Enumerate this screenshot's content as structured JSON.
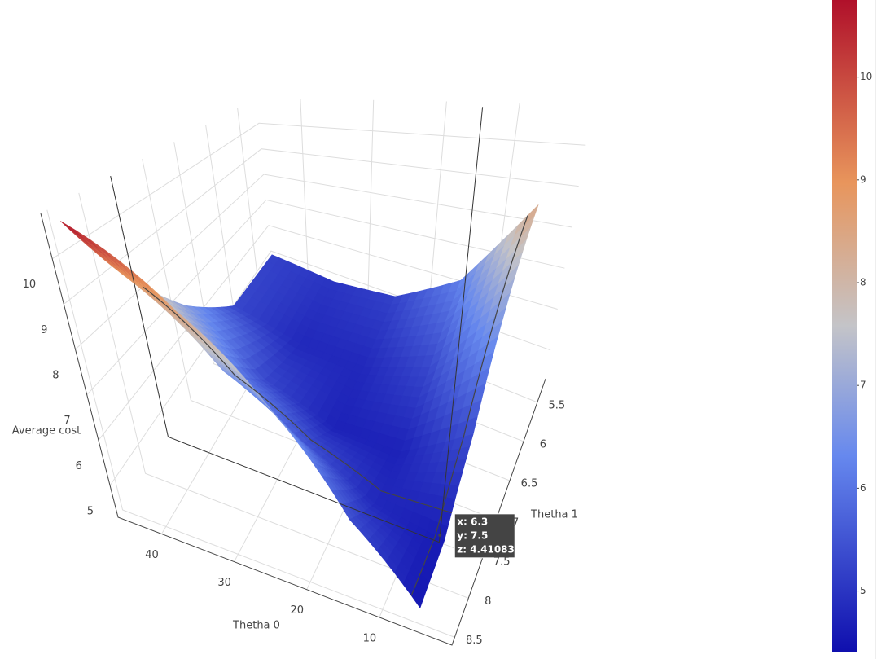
{
  "chart_data": {
    "type": "surface",
    "x_title": "Thetha 0",
    "y_title": "Thetha 1",
    "z_title": "Average cost",
    "x": [
      5,
      15,
      25,
      35,
      45
    ],
    "y": [
      5.3,
      6.1,
      6.9,
      7.7,
      8.5
    ],
    "z": [
      [
        8.5,
        6.2,
        5.2,
        5.0,
        5.2
      ],
      [
        6.9,
        5.3,
        4.8,
        4.8,
        5.3
      ],
      [
        5.4,
        4.7,
        4.7,
        5.3,
        6.8
      ],
      [
        4.6,
        4.8,
        5.5,
        6.6,
        8.6
      ],
      [
        4.5,
        5.4,
        6.9,
        8.6,
        10.7
      ]
    ],
    "xlim": [
      0,
      46
    ],
    "ylim": [
      5.2,
      8.6
    ],
    "zlim": [
      4.3,
      11
    ],
    "xticks": [
      10,
      20,
      30,
      40
    ],
    "yticks": [
      5.5,
      6,
      6.5,
      7,
      7.5,
      8,
      8.5
    ],
    "zticks": [
      5,
      6,
      7,
      8,
      9,
      10
    ],
    "colorscale": [
      [
        0,
        "#0f0fae"
      ],
      [
        0.3,
        "#6688ee"
      ],
      [
        0.5,
        "#c4c4c8"
      ],
      [
        0.72,
        "#e8955c"
      ],
      [
        1,
        "#b0102a"
      ]
    ],
    "colorbar": {
      "range": [
        4.41,
        10.75
      ],
      "ticks": [
        5,
        6,
        7,
        8,
        9,
        10
      ]
    },
    "hover": {
      "x": 6.3,
      "y": 7.5,
      "z": 4.410831,
      "lines": [
        "x: 6.3",
        "y: 7.5",
        "z: 4.410831"
      ]
    }
  }
}
